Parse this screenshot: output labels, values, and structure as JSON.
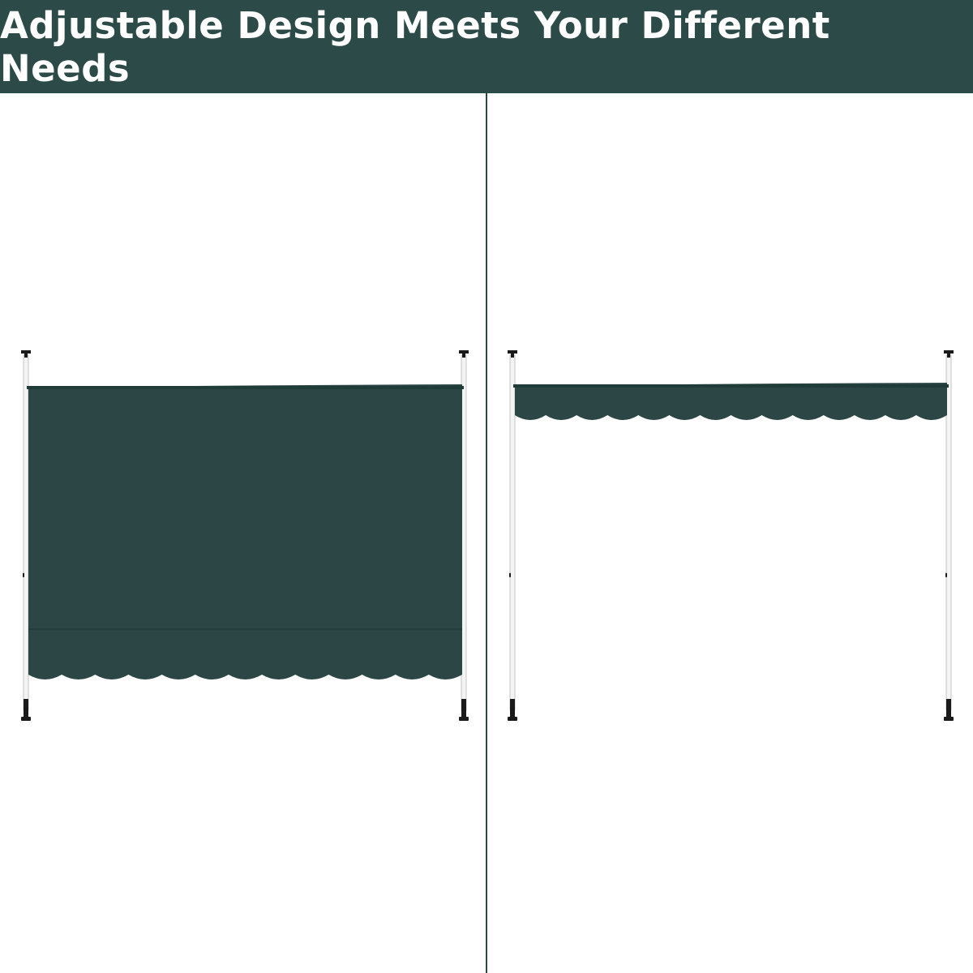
{
  "header": {
    "title": "Adjustable Design Meets Your Different Needs"
  },
  "colors": {
    "banner": "#2c4a47",
    "fabric": "#2b4644",
    "fabric_dark": "#1f3c38",
    "pole": "#f4f4f4",
    "pole_outline": "#b9b9b9",
    "cap": "#1a1a1a",
    "divider": "#2c4a47"
  },
  "panels": [
    {
      "state": "extended"
    },
    {
      "state": "retracted"
    }
  ]
}
